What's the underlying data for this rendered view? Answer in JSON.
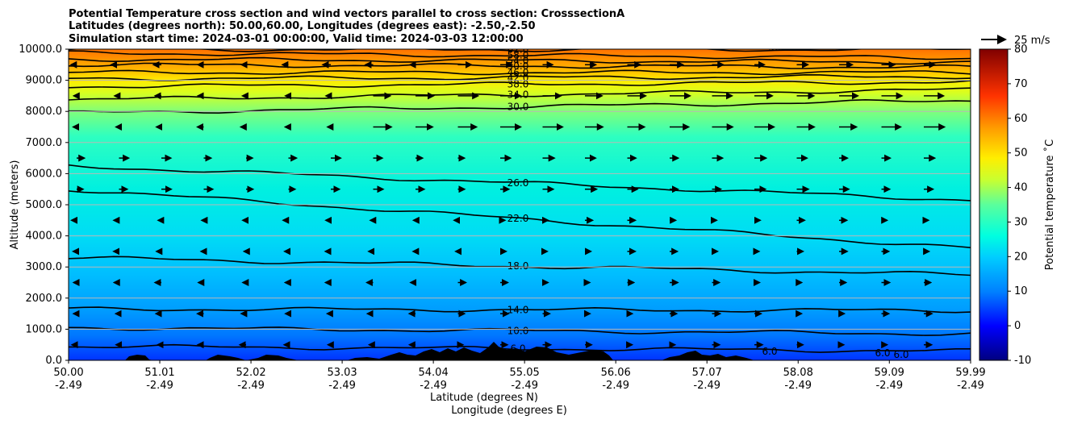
{
  "title": {
    "line1": "Potential Temperature cross section and wind vectors parallel to cross section: CrosssectionA",
    "line2": "Latitudes (degrees north): 50.00,60.00, Longitudes (degrees east): -2.50,-2.50",
    "line3": "Simulation start time: 2024-03-01 00:00:00, Valid time: 2024-03-03 12:00:00"
  },
  "chart_data": {
    "type": "heatmap",
    "title": "Potential Temperature cross section and wind vectors parallel to cross section: CrosssectionA",
    "xlabel_lat": "Latitude (degrees N)",
    "xlabel_lon": "Longitude (degrees E)",
    "ylabel": "Altitude (meters)",
    "ylim": [
      0,
      10000
    ],
    "xlim": [
      50.0,
      59.99
    ],
    "y_ticks": [
      "0.0",
      "1000.0",
      "2000.0",
      "3000.0",
      "4000.0",
      "5000.0",
      "6000.0",
      "7000.0",
      "8000.0",
      "9000.0",
      "10000.0"
    ],
    "x_ticks_lat": [
      "50.00",
      "51.01",
      "52.02",
      "53.03",
      "54.04",
      "55.05",
      "56.06",
      "57.07",
      "58.08",
      "59.09",
      "59.99"
    ],
    "x_ticks_lon": [
      "-2.49",
      "-2.49",
      "-2.49",
      "-2.49",
      "-2.49",
      "-2.49",
      "-2.49",
      "-2.49",
      "-2.49",
      "-2.49",
      "-2.49"
    ],
    "grid": "horizontal",
    "colorbar": {
      "label": "Potential temperature ˚C",
      "range": [
        -10,
        80
      ],
      "ticks": [
        "-10",
        "0",
        "10",
        "20",
        "30",
        "40",
        "50",
        "60",
        "70",
        "80"
      ]
    },
    "wind_key": "25 m/s",
    "contour_labels": [
      "62.0",
      "58.0",
      "54.0",
      "50.0",
      "46.0",
      "42.0",
      "38.0",
      "34.0",
      "30.0",
      "26.0",
      "22.0",
      "18.0",
      "14.0",
      "10.0",
      "6.0",
      "6.0",
      "6.0",
      "6.0",
      "58.0"
    ],
    "contours": [
      {
        "level": 62,
        "alt_west": 9990,
        "alt_east": 9990
      },
      {
        "level": 58,
        "alt_west": 9880,
        "alt_east": 9720
      },
      {
        "level": 54,
        "alt_west": 9680,
        "alt_east": 9580
      },
      {
        "level": 50,
        "alt_west": 9500,
        "alt_east": 9420
      },
      {
        "level": 46,
        "alt_west": 9250,
        "alt_east": 9250
      },
      {
        "level": 42,
        "alt_west": 9050,
        "alt_east": 9120
      },
      {
        "level": 38,
        "alt_west": 8800,
        "alt_east": 8950
      },
      {
        "level": 34,
        "alt_west": 8380,
        "alt_east": 8700
      },
      {
        "level": 30,
        "alt_west": 7950,
        "alt_east": 8350
      },
      {
        "level": 26,
        "alt_west": 6250,
        "alt_east": 5150
      },
      {
        "level": 22,
        "alt_west": 5500,
        "alt_east": 3600
      },
      {
        "level": 18,
        "alt_west": 3300,
        "alt_east": 2750
      },
      {
        "level": 14,
        "alt_west": 1650,
        "alt_east": 1600
      },
      {
        "level": 10,
        "alt_west": 1050,
        "alt_east": 850
      },
      {
        "level": 6,
        "alt_west": 450,
        "alt_east": 300
      }
    ]
  }
}
